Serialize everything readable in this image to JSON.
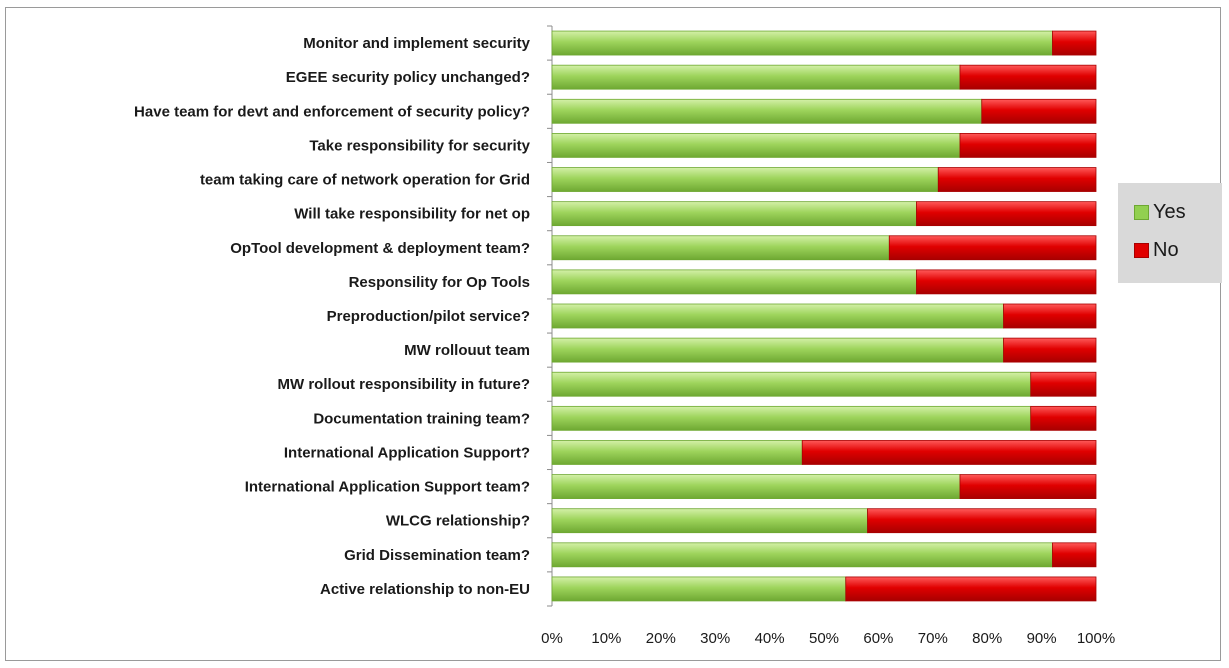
{
  "chart_data": {
    "type": "bar",
    "orientation": "horizontal",
    "stacked": "percent",
    "categories": [
      "Monitor and implement security",
      "EGEE security policy unchanged?",
      "Have team for devt and enforcement of security policy?",
      "Take responsibility for security",
      "team taking care of network operation for Grid",
      "Will take responsibility for net op",
      "OpTool development & deployment team?",
      "Responsility for Op Tools",
      "Preproduction/pilot service?",
      "MW rollouut team",
      "MW rollout responsibility in future?",
      "Documentation training team?",
      "International Application Support?",
      "International Application Support team?",
      "WLCG relationship?",
      "Grid Dissemination team?",
      "Active relationship to non-EU"
    ],
    "series": [
      {
        "name": "Yes",
        "color": "#92d050",
        "values": [
          92,
          75,
          79,
          75,
          71,
          67,
          62,
          67,
          83,
          83,
          88,
          88,
          46,
          75,
          58,
          92,
          54
        ]
      },
      {
        "name": "No",
        "color": "#e00000",
        "values": [
          8,
          25,
          21,
          25,
          29,
          33,
          38,
          33,
          17,
          17,
          12,
          12,
          54,
          25,
          42,
          8,
          46
        ]
      }
    ],
    "xticks": [
      "0%",
      "10%",
      "20%",
      "30%",
      "40%",
      "50%",
      "60%",
      "70%",
      "80%",
      "90%",
      "100%"
    ],
    "xlim": [
      0,
      100
    ],
    "legend_position": "right",
    "grid": false
  }
}
